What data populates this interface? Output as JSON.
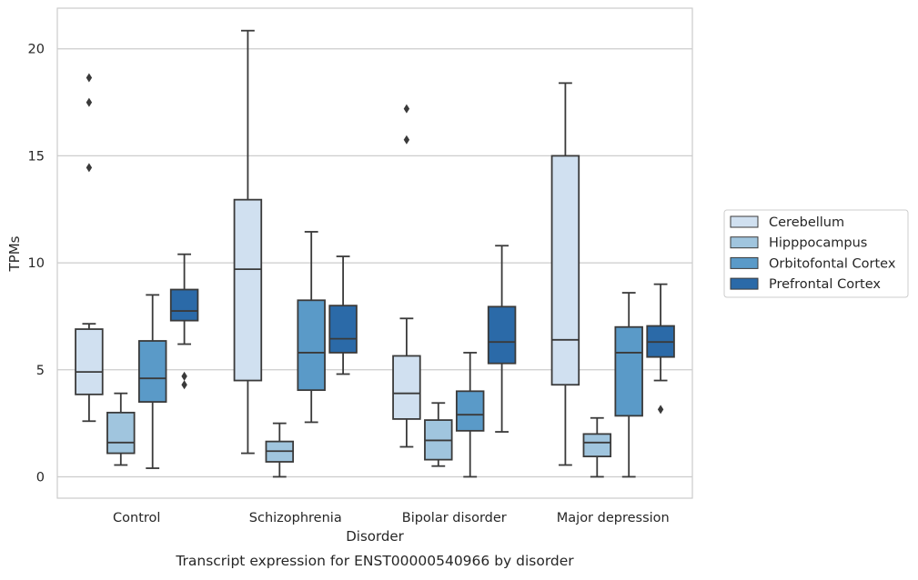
{
  "chart_data": {
    "type": "boxplot",
    "title": "",
    "caption": "Transcript expression for ENST00000540966 by disorder",
    "xlabel": "Disorder",
    "ylabel": "TPMs",
    "ylim": [
      -1,
      21.9
    ],
    "yticks": [
      0,
      5,
      10,
      15,
      20
    ],
    "grid": "horizontal",
    "legend_position": "right",
    "categories": [
      "Control",
      "Schizophrenia",
      "Bipolar disorder",
      "Major depression"
    ],
    "series": [
      {
        "name": "Cerebellum",
        "color": "#d0e0f0",
        "boxes": [
          {
            "whisker_low": 2.6,
            "q1": 3.85,
            "median": 4.9,
            "q3": 6.9,
            "whisker_high": 7.15,
            "outliers": [
              14.45,
              17.5,
              18.65
            ]
          },
          {
            "whisker_low": 1.1,
            "q1": 4.5,
            "median": 9.7,
            "q3": 12.95,
            "whisker_high": 20.85,
            "outliers": []
          },
          {
            "whisker_low": 1.4,
            "q1": 2.7,
            "median": 3.9,
            "q3": 5.65,
            "whisker_high": 7.4,
            "outliers": [
              15.75,
              17.2
            ]
          },
          {
            "whisker_low": 0.55,
            "q1": 4.3,
            "median": 6.4,
            "q3": 15.0,
            "whisker_high": 18.4,
            "outliers": []
          }
        ]
      },
      {
        "name": "Hipppocampus",
        "color": "#a0c5de",
        "boxes": [
          {
            "whisker_low": 0.55,
            "q1": 1.1,
            "median": 1.6,
            "q3": 3.0,
            "whisker_high": 3.9,
            "outliers": []
          },
          {
            "whisker_low": 0.0,
            "q1": 0.7,
            "median": 1.2,
            "q3": 1.65,
            "whisker_high": 2.5,
            "outliers": []
          },
          {
            "whisker_low": 0.5,
            "q1": 0.8,
            "median": 1.7,
            "q3": 2.65,
            "whisker_high": 3.45,
            "outliers": []
          },
          {
            "whisker_low": 0.0,
            "q1": 0.95,
            "median": 1.6,
            "q3": 2.0,
            "whisker_high": 2.75,
            "outliers": []
          }
        ]
      },
      {
        "name": "Orbitofontal Cortex",
        "color": "#5a9ac8",
        "boxes": [
          {
            "whisker_low": 0.4,
            "q1": 3.5,
            "median": 4.6,
            "q3": 6.35,
            "whisker_high": 8.5,
            "outliers": []
          },
          {
            "whisker_low": 2.55,
            "q1": 4.05,
            "median": 5.8,
            "q3": 8.25,
            "whisker_high": 11.45,
            "outliers": []
          },
          {
            "whisker_low": 0.0,
            "q1": 2.15,
            "median": 2.9,
            "q3": 4.0,
            "whisker_high": 5.8,
            "outliers": []
          },
          {
            "whisker_low": 0.0,
            "q1": 2.85,
            "median": 5.8,
            "q3": 7.0,
            "whisker_high": 8.6,
            "outliers": []
          }
        ]
      },
      {
        "name": "Prefrontal Cortex",
        "color": "#2b6aa8",
        "boxes": [
          {
            "whisker_low": 6.2,
            "q1": 7.3,
            "median": 7.75,
            "q3": 8.75,
            "whisker_high": 10.4,
            "outliers": [
              4.3,
              4.7
            ]
          },
          {
            "whisker_low": 4.8,
            "q1": 5.8,
            "median": 6.45,
            "q3": 8.0,
            "whisker_high": 10.3,
            "outliers": []
          },
          {
            "whisker_low": 2.1,
            "q1": 5.3,
            "median": 6.3,
            "q3": 7.95,
            "whisker_high": 10.8,
            "outliers": []
          },
          {
            "whisker_low": 4.5,
            "q1": 5.6,
            "median": 6.3,
            "q3": 7.05,
            "whisker_high": 9.0,
            "outliers": [
              3.15
            ]
          }
        ]
      }
    ]
  }
}
